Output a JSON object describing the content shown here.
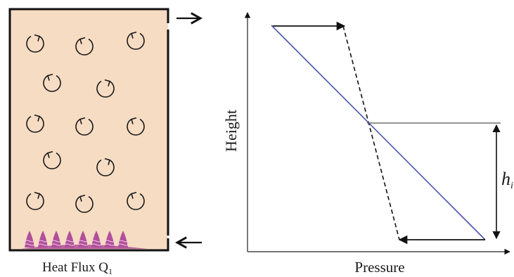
{
  "room": {
    "caption_main": "Heat Flux Q",
    "caption_sub": "1"
  },
  "plot": {
    "xlabel": "Pressure",
    "ylabel": "Height",
    "h_main": "h",
    "h_sub": "i"
  },
  "colors": {
    "room_fill": "#f6dcc3",
    "room_border": "#111111",
    "pressure_line": "#4a56b0",
    "flame": "#b0509a",
    "swirl": "#1a1a1a"
  },
  "icons": {
    "swirl": "circular-arrow-icon",
    "flame": "flame-icon",
    "arrow": "arrow-icon"
  }
}
